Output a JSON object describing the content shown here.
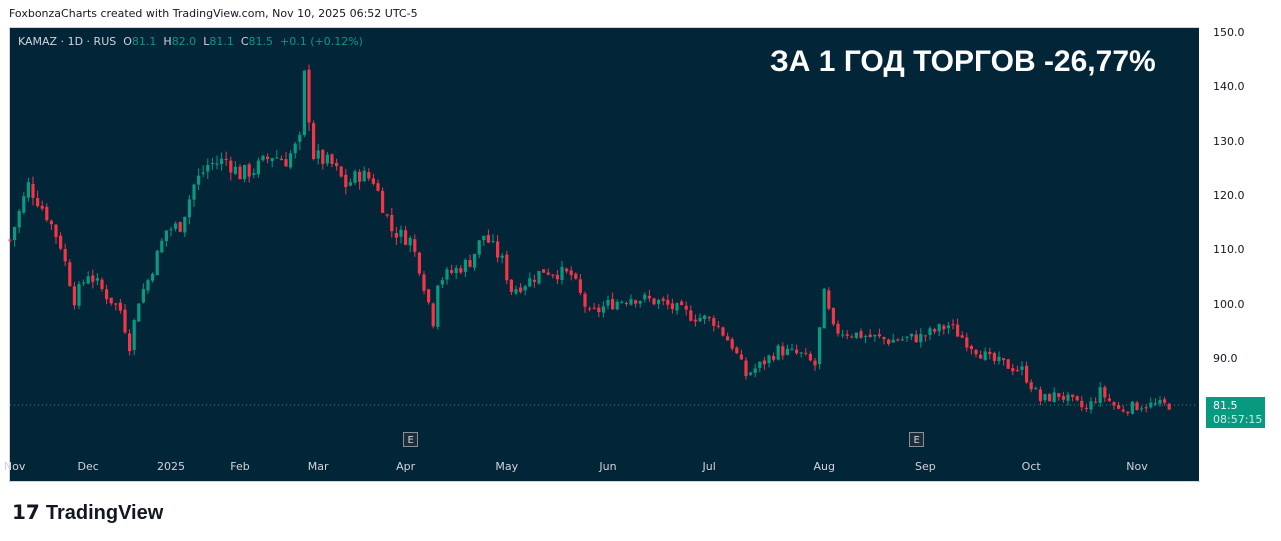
{
  "caption": "FoxbonzaCharts created with TradingView.com, Nov 10, 2025 06:52 UTC-5",
  "legend": {
    "symbol": "KAMAZ · 1D · RUS",
    "o_label": "O",
    "o": "81.1",
    "h_label": "H",
    "h": "82.0",
    "l_label": "L",
    "l": "81.1",
    "c_label": "C",
    "c": "81.5",
    "change": "+0.1 (+0.12%)"
  },
  "headline": "ЗА 1 ГОД ТОРГОВ -26,77%",
  "price_tag": {
    "price": "81.5",
    "countdown": "08:57:15"
  },
  "earnings_marker": "E",
  "logo": "TradingView",
  "colors": {
    "up": "#089981",
    "down": "#f23645",
    "background": "#022538"
  },
  "chart_data": {
    "type": "candlestick",
    "title": "KAMAZ · 1D · RUS",
    "ylim": [
      77,
      151
    ],
    "yticks": [
      "150.0",
      "140.0",
      "130.0",
      "120.0",
      "110.0",
      "100.0",
      "90.0"
    ],
    "ytick_values": [
      150,
      140,
      130,
      120,
      110,
      100,
      90
    ],
    "xlim": [
      -1,
      257
    ],
    "xticks": [
      {
        "label": "Nov",
        "day": 1
      },
      {
        "label": "Dec",
        "day": 17
      },
      {
        "label": "2025",
        "day": 35
      },
      {
        "label": "Feb",
        "day": 50
      },
      {
        "label": "Mar",
        "day": 67
      },
      {
        "label": "Apr",
        "day": 86
      },
      {
        "label": "May",
        "day": 108
      },
      {
        "label": "Jun",
        "day": 130
      },
      {
        "label": "Jul",
        "day": 152
      },
      {
        "label": "Aug",
        "day": 177
      },
      {
        "label": "Sep",
        "day": 199
      },
      {
        "label": "Oct",
        "day": 222
      },
      {
        "label": "Nov",
        "day": 245
      }
    ],
    "earnings_days": [
      87,
      197
    ],
    "last_price": 81.5,
    "close_anchors": [
      [
        0,
        111.9
      ],
      [
        4,
        122
      ],
      [
        8,
        116.5
      ],
      [
        11,
        111
      ],
      [
        14,
        101
      ],
      [
        17,
        105.8
      ],
      [
        21,
        101.7
      ],
      [
        24,
        99
      ],
      [
        26,
        92.5
      ],
      [
        28,
        101
      ],
      [
        30,
        104.5
      ],
      [
        34,
        113.7
      ],
      [
        37,
        114.6
      ],
      [
        40,
        122
      ],
      [
        43,
        125.7
      ],
      [
        47,
        126.6
      ],
      [
        50,
        124
      ],
      [
        53,
        124.8
      ],
      [
        57,
        127.5
      ],
      [
        60,
        126.6
      ],
      [
        63,
        130
      ],
      [
        64,
        142
      ],
      [
        66,
        127.5
      ],
      [
        70,
        125.7
      ],
      [
        73,
        122
      ],
      [
        76,
        124
      ],
      [
        79,
        123
      ],
      [
        83,
        113.7
      ],
      [
        87,
        111.9
      ],
      [
        89,
        107
      ],
      [
        92,
        97
      ],
      [
        93,
        104.5
      ],
      [
        97,
        106.4
      ],
      [
        100,
        108
      ],
      [
        103,
        112.8
      ],
      [
        107,
        108
      ],
      [
        109,
        102.7
      ],
      [
        113,
        104.5
      ],
      [
        116,
        106.4
      ],
      [
        122,
        105.4
      ],
      [
        126,
        98
      ],
      [
        130,
        100
      ],
      [
        135,
        101.4
      ],
      [
        141,
        100.5
      ],
      [
        148,
        98
      ],
      [
        153,
        97
      ],
      [
        157,
        92.5
      ],
      [
        160,
        87
      ],
      [
        163,
        88.8
      ],
      [
        167,
        91.6
      ],
      [
        172,
        90.7
      ],
      [
        175,
        88.8
      ],
      [
        177,
        101.7
      ],
      [
        179,
        95.3
      ],
      [
        185,
        94.4
      ],
      [
        191,
        93.4
      ],
      [
        198,
        94
      ],
      [
        204,
        96.2
      ],
      [
        209,
        92.5
      ],
      [
        213,
        89.8
      ],
      [
        220,
        87.9
      ],
      [
        224,
        82.4
      ],
      [
        228,
        83.4
      ],
      [
        234,
        80.6
      ],
      [
        237,
        83.9
      ],
      [
        241,
        80.6
      ],
      [
        246,
        81.5
      ],
      [
        252,
        81.5
      ]
    ]
  }
}
